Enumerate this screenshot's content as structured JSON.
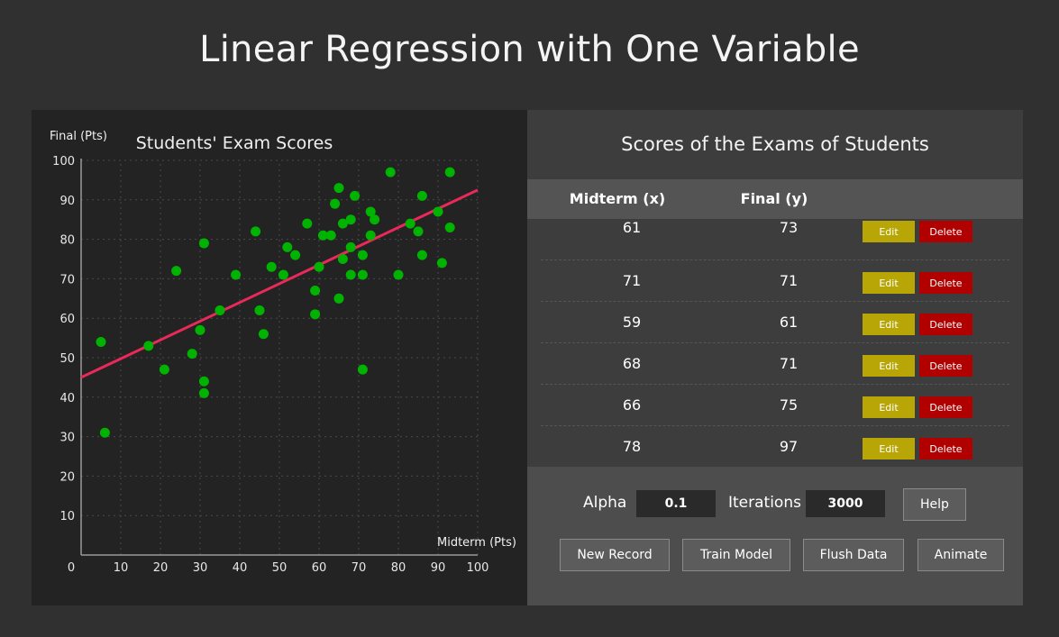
{
  "page": {
    "title": "Linear Regression with One Variable"
  },
  "chart_data": {
    "type": "scatter",
    "title": "Students' Exam Scores",
    "xlabel": "Midterm (Pts)",
    "ylabel": "Final (Pts)",
    "xlim": [
      0,
      100
    ],
    "ylim": [
      0,
      100
    ],
    "xticks": [
      0,
      10,
      20,
      30,
      40,
      50,
      60,
      70,
      80,
      90,
      100
    ],
    "yticks": [
      10,
      20,
      30,
      40,
      50,
      60,
      70,
      80,
      90,
      100
    ],
    "grid": true,
    "point_color": "#00b300",
    "line_color": "#e8295a",
    "points": [
      [
        5,
        54
      ],
      [
        6,
        31
      ],
      [
        17,
        53
      ],
      [
        21,
        47
      ],
      [
        24,
        72
      ],
      [
        28,
        51
      ],
      [
        30,
        57
      ],
      [
        31,
        79
      ],
      [
        31,
        44
      ],
      [
        31,
        41
      ],
      [
        35,
        62
      ],
      [
        39,
        71
      ],
      [
        44,
        82
      ],
      [
        45,
        62
      ],
      [
        46,
        56
      ],
      [
        48,
        73
      ],
      [
        51,
        71
      ],
      [
        52,
        78
      ],
      [
        54,
        76
      ],
      [
        57,
        84
      ],
      [
        59,
        67
      ],
      [
        59,
        61
      ],
      [
        60,
        73
      ],
      [
        61,
        81
      ],
      [
        63,
        81
      ],
      [
        64,
        89
      ],
      [
        65,
        93
      ],
      [
        65,
        65
      ],
      [
        66,
        75
      ],
      [
        66,
        84
      ],
      [
        68,
        85
      ],
      [
        68,
        78
      ],
      [
        68,
        71
      ],
      [
        69,
        91
      ],
      [
        71,
        71
      ],
      [
        71,
        76
      ],
      [
        71,
        47
      ],
      [
        73,
        87
      ],
      [
        73,
        81
      ],
      [
        74,
        85
      ],
      [
        78,
        97
      ],
      [
        80,
        71
      ],
      [
        83,
        84
      ],
      [
        85,
        82
      ],
      [
        86,
        91
      ],
      [
        86,
        76
      ],
      [
        90,
        87
      ],
      [
        91,
        74
      ],
      [
        93,
        97
      ],
      [
        93,
        83
      ]
    ],
    "regression_line": {
      "x": [
        0,
        100
      ],
      "y": [
        45,
        92.5
      ]
    }
  },
  "table": {
    "title": "Scores of the Exams of Students",
    "headers": {
      "midterm": "Midterm (x)",
      "final": "Final (y)"
    },
    "edit_label": "Edit",
    "delete_label": "Delete",
    "rows": [
      {
        "midterm": "61",
        "final": "73"
      },
      {
        "midterm": "71",
        "final": "71"
      },
      {
        "midterm": "59",
        "final": "61"
      },
      {
        "midterm": "68",
        "final": "71"
      },
      {
        "midterm": "66",
        "final": "75"
      },
      {
        "midterm": "78",
        "final": "97"
      }
    ]
  },
  "controls": {
    "alpha_label": "Alpha",
    "alpha_value": "0.1",
    "iterations_label": "Iterations",
    "iterations_value": "3000",
    "help_label": "Help",
    "new_record_label": "New Record",
    "train_model_label": "Train Model",
    "flush_data_label": "Flush Data",
    "animate_label": "Animate"
  }
}
